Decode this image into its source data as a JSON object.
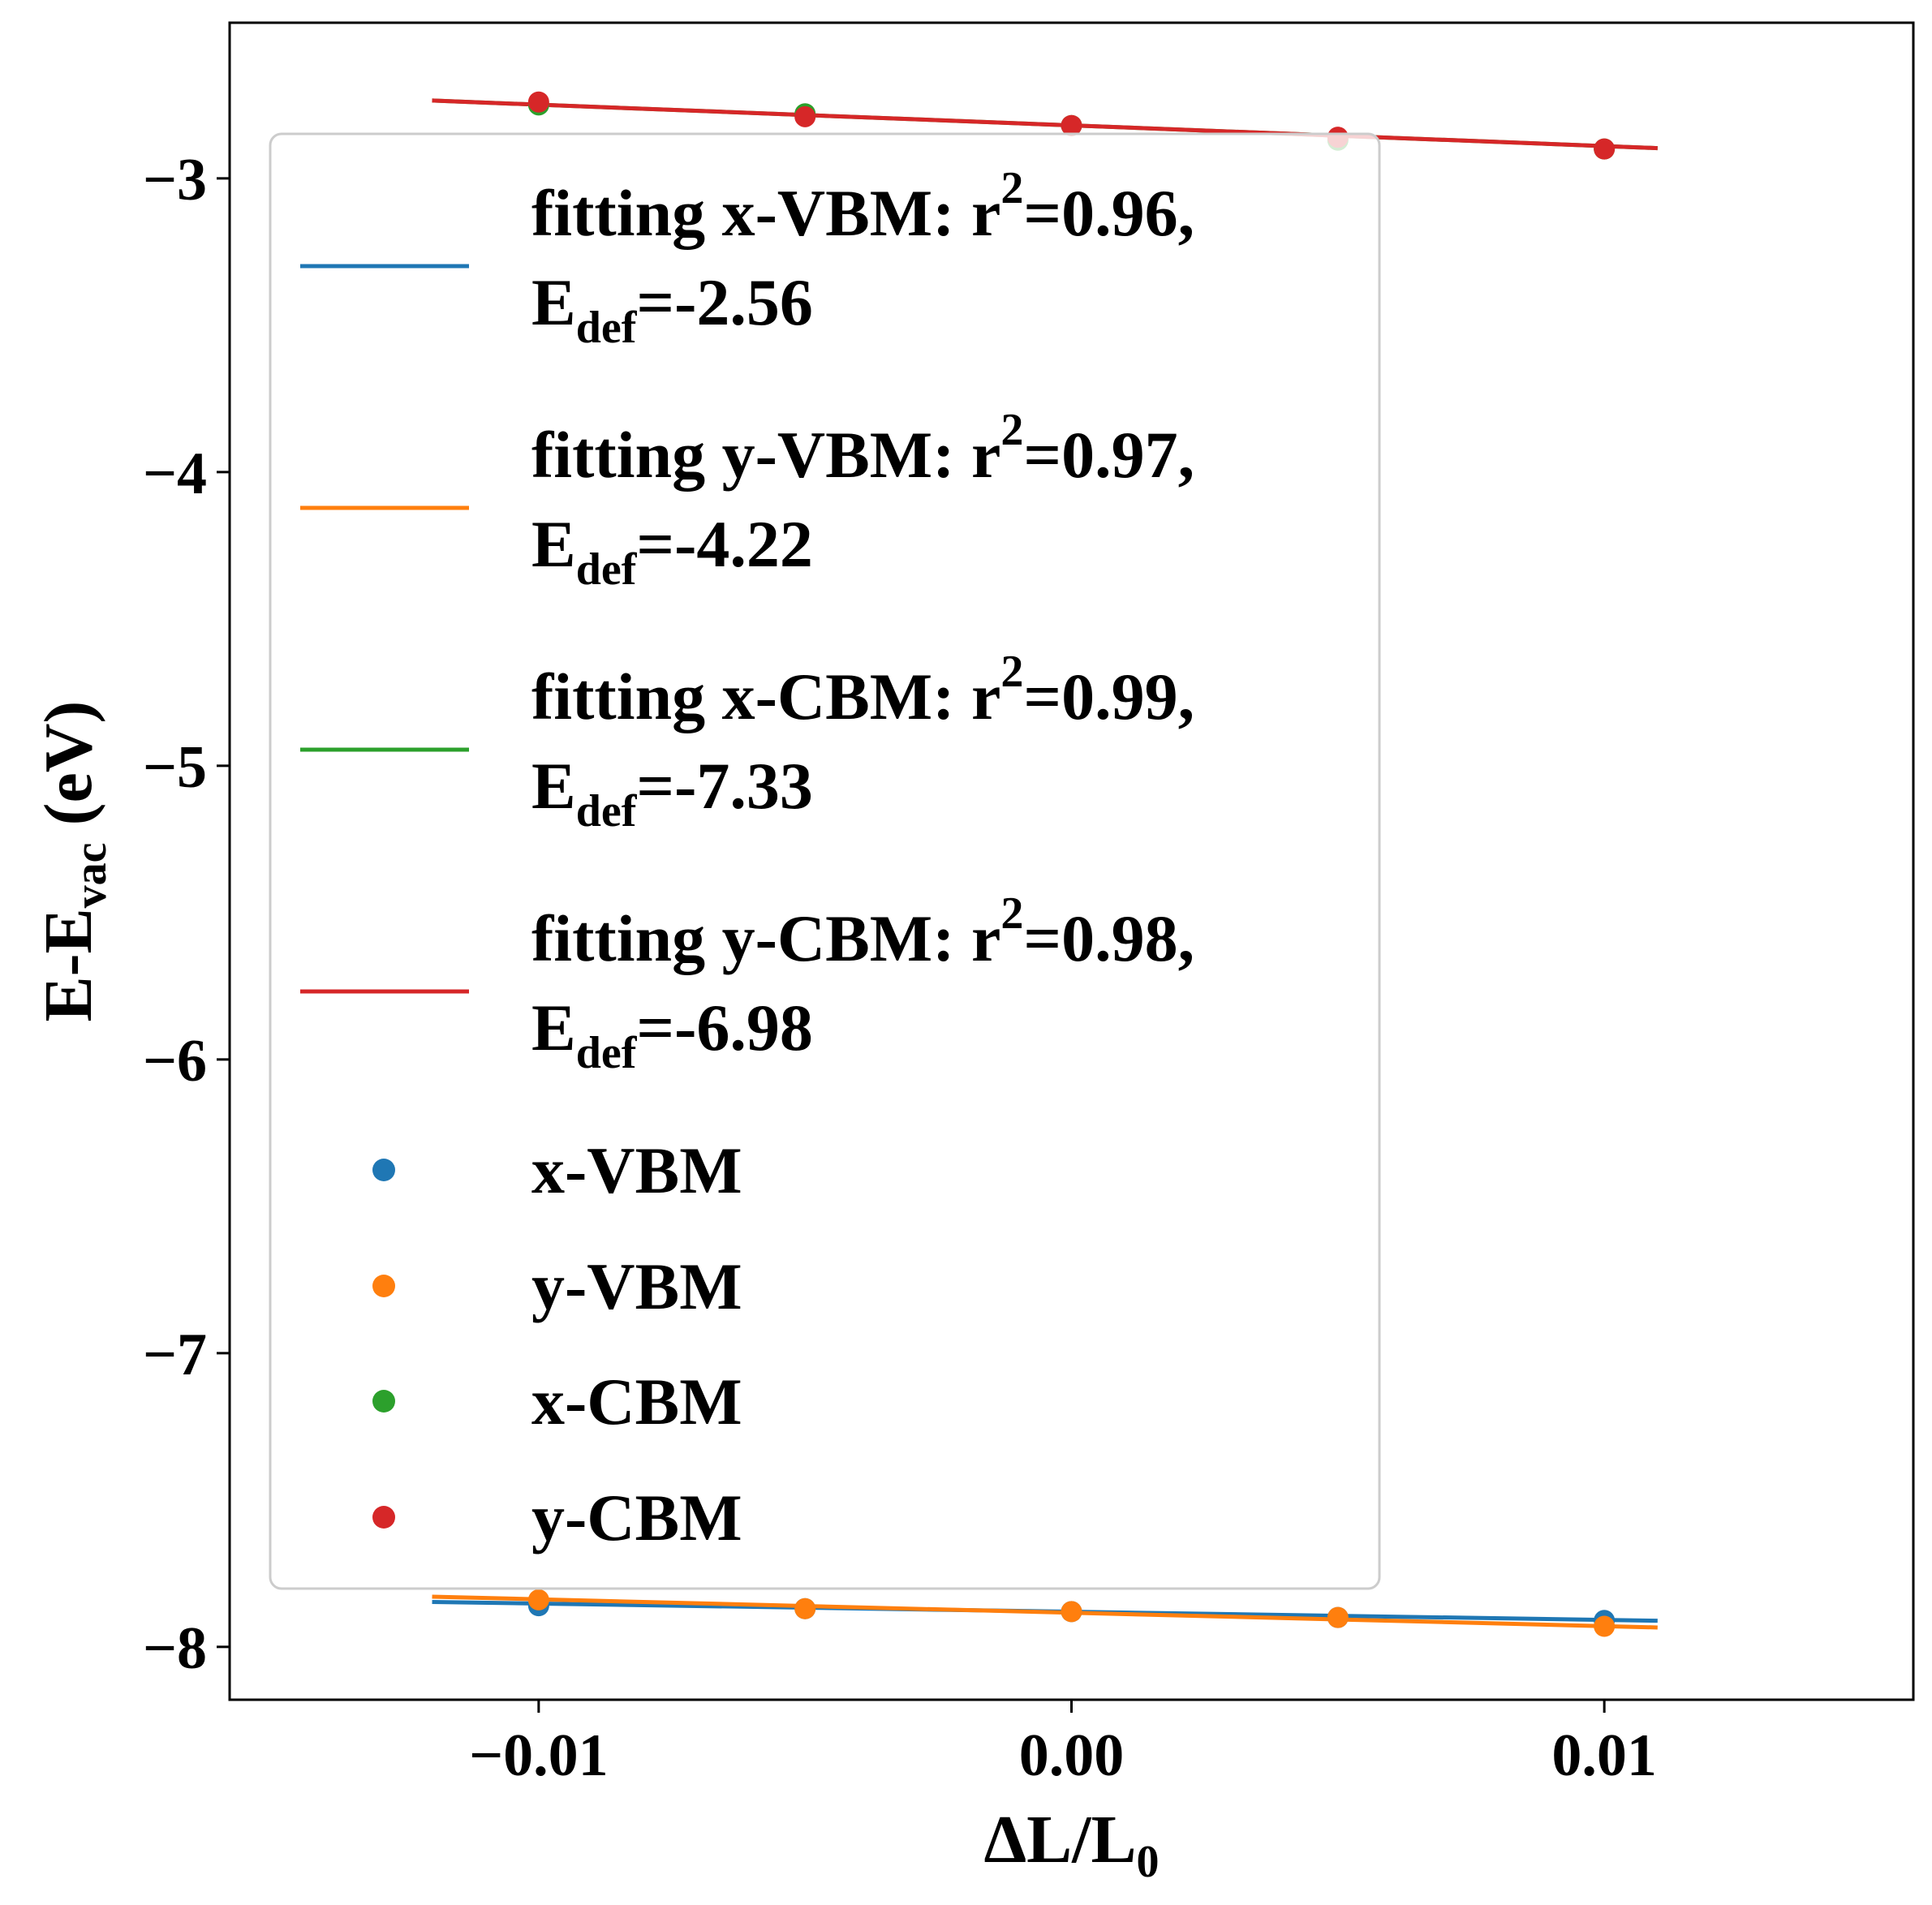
{
  "chart_data": {
    "type": "scatter",
    "xlabel": "ΔL/L",
    "xlabel_sub": "0",
    "ylabel": "E-E",
    "ylabel_sub": "vac",
    "ylabel_unit": "(eV)",
    "xlim": [
      -0.0158,
      0.0158
    ],
    "ylim": [
      -8.18,
      -2.47
    ],
    "xticks": [
      -0.01,
      0.0,
      0.01
    ],
    "xtick_labels": [
      "−0.01",
      "0.00",
      "0.01"
    ],
    "yticks": [
      -3,
      -4,
      -5,
      -6,
      -7,
      -8
    ],
    "ytick_labels": [
      "−3",
      "−4",
      "−5",
      "−6",
      "−7",
      "−8"
    ],
    "grid": false,
    "legend_position": "center-left",
    "x": [
      -0.01,
      -0.005,
      0.0,
      0.005,
      0.01
    ],
    "series": [
      {
        "name": "x-VBM",
        "color": "#1f77b4",
        "values": [
          -7.86,
          -7.87,
          -7.88,
          -7.9,
          -7.91
        ],
        "fit": [
          -7.847,
          -7.911
        ]
      },
      {
        "name": "y-VBM",
        "color": "#ff7f0e",
        "values": [
          -7.84,
          -7.87,
          -7.88,
          -7.9,
          -7.93
        ],
        "fit": [
          -7.829,
          -7.934
        ]
      },
      {
        "name": "x-CBM",
        "color": "#2ca02c",
        "values": [
          -2.75,
          -2.78,
          -2.82,
          -2.87,
          -2.9
        ],
        "fit": [
          -2.735,
          -2.897
        ]
      },
      {
        "name": "y-CBM",
        "color": "#d62728",
        "values": [
          -2.74,
          -2.79,
          -2.82,
          -2.86,
          -2.9
        ],
        "fit": [
          -2.735,
          -2.897
        ]
      }
    ],
    "fit_x": [
      -0.012,
      0.011
    ],
    "fits": [
      {
        "label": "fitting x-VBM: r",
        "sup": "2",
        "r2": "=0.96,",
        "edef_label": "E",
        "edef_sub": "def",
        "edef_value": "=-2.56",
        "color": "#1f77b4"
      },
      {
        "label": "fitting y-VBM: r",
        "sup": "2",
        "r2": "=0.97,",
        "edef_label": "E",
        "edef_sub": "def",
        "edef_value": "=-4.22",
        "color": "#ff7f0e"
      },
      {
        "label": "fitting x-CBM: r",
        "sup": "2",
        "r2": "=0.99,",
        "edef_label": "E",
        "edef_sub": "def",
        "edef_value": "=-7.33",
        "color": "#2ca02c"
      },
      {
        "label": "fitting y-CBM: r",
        "sup": "2",
        "r2": "=0.98,",
        "edef_label": "E",
        "edef_sub": "def",
        "edef_value": "=-6.98",
        "color": "#d62728"
      }
    ]
  }
}
